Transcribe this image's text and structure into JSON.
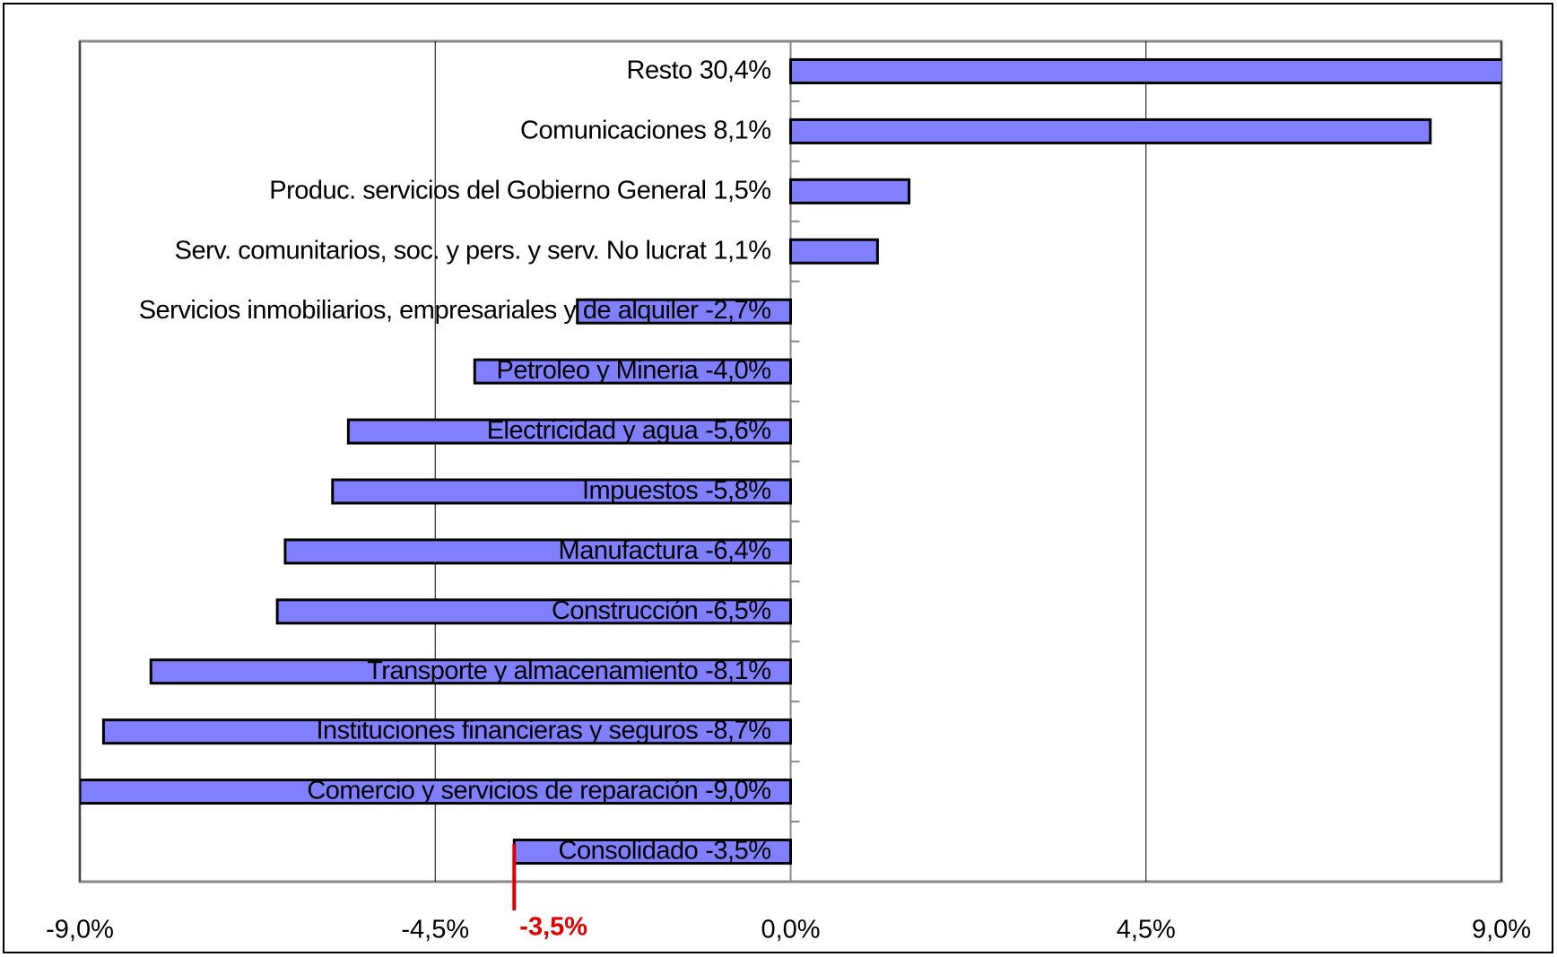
{
  "chart_data": {
    "type": "bar",
    "orientation": "horizontal",
    "categories": [
      "Resto",
      "Comunicaciones",
      "Produc. servicios del Gobierno General",
      "Serv. comunitarios, soc. y pers. y serv. No lucrat",
      "Servicios inmobiliarios, empresariales y de alquiler",
      "Petroleo y Mineria",
      "Electricidad y agua",
      "Impuestos",
      "Manufactura",
      "Construcción",
      "Transporte y almacenamiento",
      "Instituciones financieras y seguros",
      "Comercio y servicios de reparación",
      "Consolidado"
    ],
    "values": [
      30.4,
      8.1,
      1.5,
      1.1,
      -2.7,
      -4.0,
      -5.6,
      -5.8,
      -6.4,
      -6.5,
      -8.1,
      -8.7,
      -9.0,
      -3.5
    ],
    "value_labels": [
      "30,4%",
      "8,1%",
      "1,5%",
      "1,1%",
      "-2,7%",
      "-4,0%",
      "-5,6%",
      "-5,8%",
      "-6,4%",
      "-6,5%",
      "-8,1%",
      "-8,7%",
      "-9,0%",
      "-3,5%"
    ],
    "color": "#8080ff",
    "xlim": [
      -9,
      9
    ],
    "xticks": [
      {
        "value": -9,
        "label": "-9,0%"
      },
      {
        "value": -4.5,
        "label": "-4,5%"
      },
      {
        "value": 0,
        "label": "0,0%"
      },
      {
        "value": 4.5,
        "label": "4,5%"
      },
      {
        "value": 9,
        "label": "9,0%"
      }
    ],
    "grid": true,
    "annotation": {
      "value": -3.5,
      "label": "-3,5%",
      "color": "#e00000"
    }
  }
}
